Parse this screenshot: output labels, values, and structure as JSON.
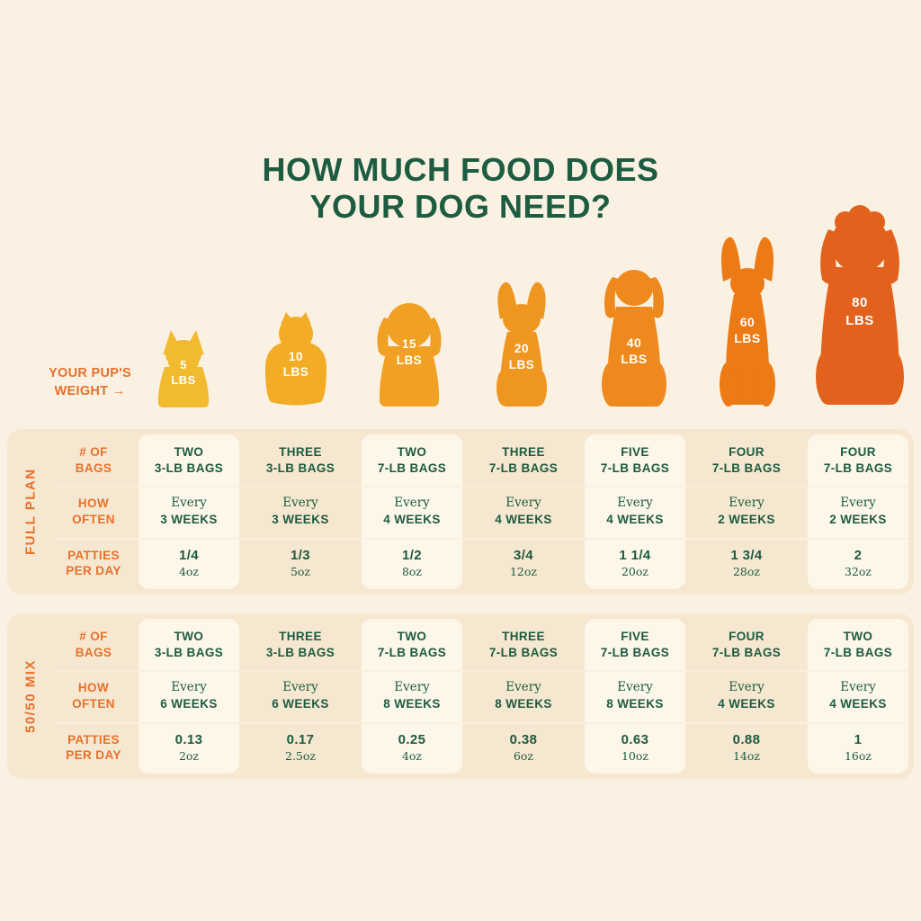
{
  "page": {
    "title_line1": "HOW MUCH FOOD DOES",
    "title_line2": "YOUR DOG NEED?"
  },
  "weight_label": {
    "line1": "YOUR PUP'S",
    "line2": "WEIGHT →"
  },
  "shared": {
    "every": "Every"
  },
  "colors": {
    "background": "#fbf1e2",
    "table_background": "#f6e8d0",
    "column_highlight": "#fdf7ea",
    "green_text": "#1c5b40",
    "orange_text": "#e8702a"
  },
  "dogs": [
    {
      "weight": "5",
      "unit": "LBS",
      "color": "#f2ba2e"
    },
    {
      "weight": "10",
      "unit": "LBS",
      "color": "#f2ac26"
    },
    {
      "weight": "15",
      "unit": "LBS",
      "color": "#f0a124"
    },
    {
      "weight": "20",
      "unit": "LBS",
      "color": "#ef9621"
    },
    {
      "weight": "40",
      "unit": "LBS",
      "color": "#ee8a1d"
    },
    {
      "weight": "60",
      "unit": "LBS",
      "color": "#ec7b15"
    },
    {
      "weight": "80",
      "unit": "LBS",
      "color": "#e2611d"
    }
  ],
  "tables": [
    {
      "name": "FULL PLAN",
      "rows": [
        {
          "line1": "# OF",
          "line2": "BAGS"
        },
        {
          "line1": "HOW",
          "line2": "OFTEN"
        },
        {
          "line1": "PATTIES",
          "line2": "PER DAY"
        }
      ],
      "columns": [
        {
          "bags1": "TWO",
          "bags2": "3-LB BAGS",
          "weeks": "3 WEEKS",
          "patties": "1/4",
          "oz": "4oz"
        },
        {
          "bags1": "THREE",
          "bags2": "3-LB BAGS",
          "weeks": "3 WEEKS",
          "patties": "1/3",
          "oz": "5oz"
        },
        {
          "bags1": "TWO",
          "bags2": "7-LB BAGS",
          "weeks": "4 WEEKS",
          "patties": "1/2",
          "oz": "8oz"
        },
        {
          "bags1": "THREE",
          "bags2": "7-LB BAGS",
          "weeks": "4 WEEKS",
          "patties": "3/4",
          "oz": "12oz"
        },
        {
          "bags1": "FIVE",
          "bags2": "7-LB BAGS",
          "weeks": "4 WEEKS",
          "patties": "1 1/4",
          "oz": "20oz"
        },
        {
          "bags1": "FOUR",
          "bags2": "7-LB BAGS",
          "weeks": "2 WEEKS",
          "patties": "1 3/4",
          "oz": "28oz"
        },
        {
          "bags1": "FOUR",
          "bags2": "7-LB BAGS",
          "weeks": "2 WEEKS",
          "patties": "2",
          "oz": "32oz"
        }
      ]
    },
    {
      "name": "50/50 MIX",
      "rows": [
        {
          "line1": "# OF",
          "line2": "BAGS"
        },
        {
          "line1": "HOW",
          "line2": "OFTEN"
        },
        {
          "line1": "PATTIES",
          "line2": "PER DAY"
        }
      ],
      "columns": [
        {
          "bags1": "TWO",
          "bags2": "3-LB BAGS",
          "weeks": "6 WEEKS",
          "patties": "0.13",
          "oz": "2oz"
        },
        {
          "bags1": "THREE",
          "bags2": "3-LB BAGS",
          "weeks": "6 WEEKS",
          "patties": "0.17",
          "oz": "2.5oz"
        },
        {
          "bags1": "TWO",
          "bags2": "7-LB BAGS",
          "weeks": "8 WEEKS",
          "patties": "0.25",
          "oz": "4oz"
        },
        {
          "bags1": "THREE",
          "bags2": "7-LB BAGS",
          "weeks": "8 WEEKS",
          "patties": "0.38",
          "oz": "6oz"
        },
        {
          "bags1": "FIVE",
          "bags2": "7-LB BAGS",
          "weeks": "8 WEEKS",
          "patties": "0.63",
          "oz": "10oz"
        },
        {
          "bags1": "FOUR",
          "bags2": "7-LB BAGS",
          "weeks": "4 WEEKS",
          "patties": "0.88",
          "oz": "14oz"
        },
        {
          "bags1": "TWO",
          "bags2": "7-LB BAGS",
          "weeks": "4 WEEKS",
          "patties": "1",
          "oz": "16oz"
        }
      ]
    }
  ],
  "chart_data": {
    "type": "table",
    "title": "How Much Food Does Your Dog Need?",
    "x_label": "Your Pup's Weight",
    "weights_lbs": [
      5,
      10,
      15,
      20,
      40,
      60,
      80
    ],
    "plans": [
      {
        "name": "Full Plan",
        "bags": [
          "Two 3-lb bags",
          "Three 3-lb bags",
          "Two 7-lb bags",
          "Three 7-lb bags",
          "Five 7-lb bags",
          "Four 7-lb bags",
          "Four 7-lb bags"
        ],
        "frequency_weeks": [
          3,
          3,
          4,
          4,
          4,
          2,
          2
        ],
        "patties_per_day": [
          "1/4",
          "1/3",
          "1/2",
          "3/4",
          "1 1/4",
          "1 3/4",
          "2"
        ],
        "ounces_per_day": [
          "4oz",
          "5oz",
          "8oz",
          "12oz",
          "20oz",
          "28oz",
          "32oz"
        ]
      },
      {
        "name": "50/50 Mix",
        "bags": [
          "Two 3-lb bags",
          "Three 3-lb bags",
          "Two 7-lb bags",
          "Three 7-lb bags",
          "Five 7-lb bags",
          "Four 7-lb bags",
          "Two 7-lb bags"
        ],
        "frequency_weeks": [
          6,
          6,
          8,
          8,
          8,
          4,
          4
        ],
        "patties_per_day": [
          "0.13",
          "0.17",
          "0.25",
          "0.38",
          "0.63",
          "0.88",
          "1"
        ],
        "ounces_per_day": [
          "2oz",
          "2.5oz",
          "4oz",
          "6oz",
          "10oz",
          "14oz",
          "16oz"
        ]
      }
    ]
  }
}
